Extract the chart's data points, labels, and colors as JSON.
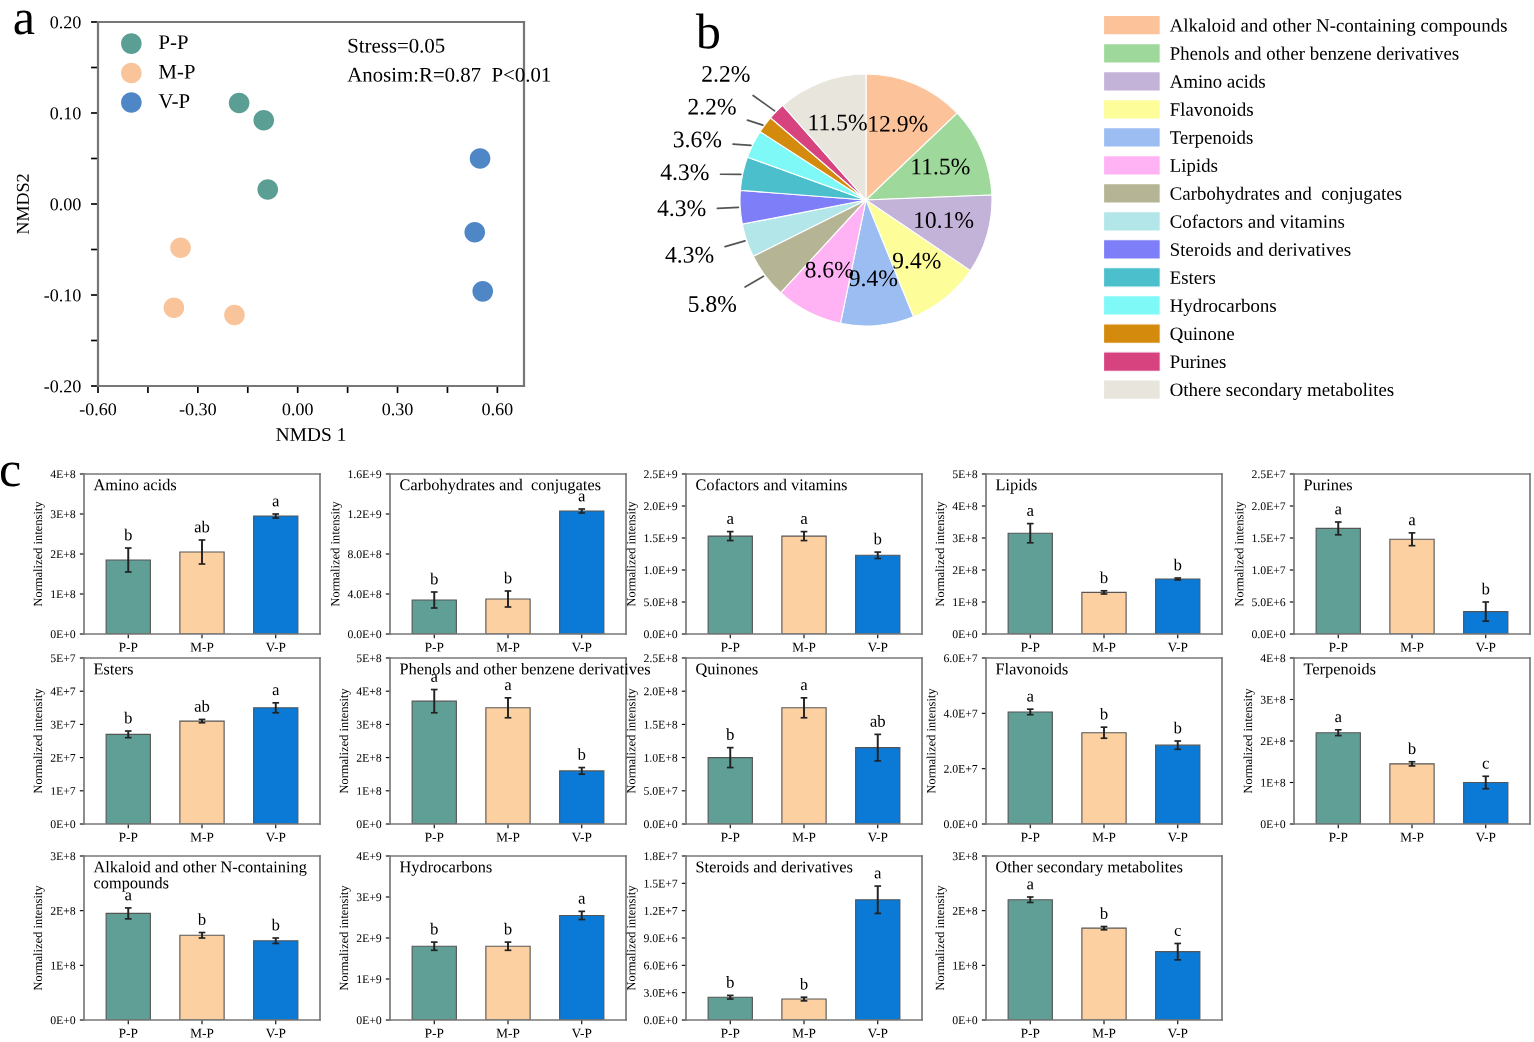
{
  "chart_data": [
    {
      "type": "scatter",
      "xlabel": "NMDS 1",
      "ylabel": "NMDS2",
      "annotations": [
        "a",
        "Stress=0.05",
        "Anosim:R=0.87  P<0.01"
      ],
      "marker": "circle",
      "legend": "top left",
      "grid": false,
      "xlim": [
        -0.6,
        0.68
      ],
      "ylim": [
        -0.2,
        0.2
      ],
      "xticks": [
        {
          "value": -0.6,
          "label": "-0.60"
        },
        {
          "value": -0.45,
          "label": null
        },
        {
          "value": -0.3,
          "label": "-0.30"
        },
        {
          "value": -0.15,
          "label": null
        },
        {
          "value": 0,
          "label": "0.00"
        },
        {
          "value": 0.15,
          "label": null
        },
        {
          "value": 0.3,
          "label": "0.30"
        },
        {
          "value": 0.45,
          "label": null
        },
        {
          "value": 0.6,
          "label": "0.60"
        }
      ],
      "yticks": [
        {
          "value": -0.2,
          "label": "-0.20"
        },
        {
          "value": -0.15,
          "label": null
        },
        {
          "value": -0.1,
          "label": "-0.10"
        },
        {
          "value": -0.05,
          "label": null
        },
        {
          "value": 0,
          "label": "0.00"
        },
        {
          "value": 0.05,
          "label": null
        },
        {
          "value": 0.1,
          "label": "0.10"
        },
        {
          "value": 0.15,
          "label": null
        },
        {
          "value": 0.2,
          "label": "0.20"
        }
      ],
      "series": [
        {
          "name": "P-P",
          "color": "#5b9e94",
          "x": [
            -0.176,
            -0.102,
            -0.09
          ],
          "values": [
            0.111,
            0.092,
            0.016
          ]
        },
        {
          "name": "M-P",
          "color": "#f9c49a",
          "x": [
            -0.352,
            -0.372,
            -0.19
          ],
          "values": [
            -0.048,
            -0.114,
            -0.122
          ]
        },
        {
          "name": "V-P",
          "color": "#4f86c6",
          "x": [
            0.548,
            0.532,
            0.556
          ],
          "values": [
            0.05,
            -0.031,
            -0.096
          ]
        }
      ]
    },
    {
      "type": "pie",
      "annotations": [
        "b"
      ],
      "legend": "right",
      "categories": [
        "Alkaloid and other N-containing compounds",
        "Phenols and other benzene derivatives",
        "Amino acids",
        "Flavonoids",
        "Terpenoids",
        "Lipids",
        "Carbohydrates and  conjugates",
        "Cofactors and vitamins",
        "Steroids and derivatives",
        "Esters",
        "Hydrocarbons",
        "Quinone",
        "Purines",
        "Othere secondary metabolites"
      ],
      "values": [
        12.9,
        11.5,
        10.1,
        9.4,
        9.4,
        8.6,
        5.8,
        4.3,
        4.3,
        4.3,
        3.6,
        2.2,
        2.2,
        11.5
      ],
      "value_labels": [
        "12.9%",
        "11.5%",
        "10.1%",
        "9.4%",
        "9.4%",
        "8.6%",
        "5.8%",
        "4.3%",
        "4.3%",
        "4.3%",
        "3.6%",
        "2.2%",
        "2.2%",
        "11.5%"
      ],
      "colors": [
        "#fcc39b",
        "#9ed99b",
        "#c4b3d9",
        "#fdfd9a",
        "#9cbdf2",
        "#ffb3f5",
        "#b5b596",
        "#b3e6e9",
        "#7e7ef8",
        "#4bbfcc",
        "#7ff8f8",
        "#d48a0c",
        "#d7437f",
        "#e7e5dc"
      ]
    },
    {
      "type": "bar",
      "title": "Amino acids",
      "ylabel": "Normalized intensity",
      "annotations": [
        "c"
      ],
      "categories": [
        "P-P",
        "M-P",
        "V-P"
      ],
      "colors": [
        "#5f9f95",
        "#fdd0a2",
        "#0a7ad6"
      ],
      "values": [
        185000000.0,
        205000000.0,
        295000000.0
      ],
      "errors": [
        30000000.0,
        30000000.0,
        5000000.0
      ],
      "value_labels": [
        "b",
        "ab",
        "a"
      ],
      "ylim": [
        0,
        400000000.0
      ],
      "yticks": [
        {
          "value": 0,
          "label": "0E+0"
        },
        {
          "value": 100000000.0,
          "label": "1E+8"
        },
        {
          "value": 200000000.0,
          "label": "2E+8"
        },
        {
          "value": 300000000.0,
          "label": "3E+8"
        },
        {
          "value": 400000000.0,
          "label": "4E+8"
        }
      ]
    },
    {
      "type": "bar",
      "title": "Carbohydrates and  conjugates",
      "ylabel": "Normalized intensity",
      "categories": [
        "P-P",
        "M-P",
        "V-P"
      ],
      "colors": [
        "#5f9f95",
        "#fdd0a2",
        "#0a7ad6"
      ],
      "values": [
        340000000.0,
        350000000.0,
        1230000000.0
      ],
      "errors": [
        80000000.0,
        80000000.0,
        20000000.0
      ],
      "value_labels": [
        "b",
        "b",
        "a"
      ],
      "ylim": [
        0,
        1600000000.0
      ],
      "yticks": [
        {
          "value": 0,
          "label": "0.0E+0"
        },
        {
          "value": 400000000.0,
          "label": "4.0E+8"
        },
        {
          "value": 800000000.0,
          "label": "8.0E+8"
        },
        {
          "value": 1200000000.0,
          "label": "1.2E+9"
        },
        {
          "value": 1600000000.0,
          "label": "1.6E+9"
        }
      ]
    },
    {
      "type": "bar",
      "title": "Cofactors and vitamins",
      "ylabel": "Normalized intensity",
      "categories": [
        "P-P",
        "M-P",
        "V-P"
      ],
      "colors": [
        "#5f9f95",
        "#fdd0a2",
        "#0a7ad6"
      ],
      "values": [
        1530000000.0,
        1530000000.0,
        1230000000.0
      ],
      "errors": [
        70000000.0,
        70000000.0,
        50000000.0
      ],
      "value_labels": [
        "a",
        "a",
        "b"
      ],
      "ylim": [
        0,
        2500000000.0
      ],
      "yticks": [
        {
          "value": 0,
          "label": "0.0E+0"
        },
        {
          "value": 500000000.0,
          "label": "5.0E+8"
        },
        {
          "value": 1000000000.0,
          "label": "1.0E+9"
        },
        {
          "value": 1500000000.0,
          "label": "1.5E+9"
        },
        {
          "value": 2000000000.0,
          "label": "2.0E+9"
        },
        {
          "value": 2500000000.0,
          "label": "2.5E+9"
        }
      ]
    },
    {
      "type": "bar",
      "title": "Lipids",
      "ylabel": "Normalized intensity",
      "categories": [
        "P-P",
        "M-P",
        "V-P"
      ],
      "colors": [
        "#5f9f95",
        "#fdd0a2",
        "#0a7ad6"
      ],
      "values": [
        315000000.0,
        130000000.0,
        172000000.0
      ],
      "errors": [
        30000000.0,
        5000000.0,
        3000000.0
      ],
      "value_labels": [
        "a",
        "b",
        "b"
      ],
      "ylim": [
        0,
        500000000.0
      ],
      "yticks": [
        {
          "value": 0,
          "label": "0E+0"
        },
        {
          "value": 100000000.0,
          "label": "1E+8"
        },
        {
          "value": 200000000.0,
          "label": "2E+8"
        },
        {
          "value": 300000000.0,
          "label": "3E+8"
        },
        {
          "value": 400000000.0,
          "label": "4E+8"
        },
        {
          "value": 500000000.0,
          "label": "5E+8"
        }
      ]
    },
    {
      "type": "bar",
      "title": "Purines",
      "ylabel": "Normalized intensity",
      "categories": [
        "P-P",
        "M-P",
        "V-P"
      ],
      "colors": [
        "#5f9f95",
        "#fdd0a2",
        "#0a7ad6"
      ],
      "values": [
        16500000.0,
        14800000.0,
        3500000.0
      ],
      "errors": [
        1000000.0,
        1000000.0,
        1500000.0
      ],
      "value_labels": [
        "a",
        "a",
        "b"
      ],
      "ylim": [
        0,
        25000000.0
      ],
      "yticks": [
        {
          "value": 0,
          "label": "0.0E+0"
        },
        {
          "value": 5000000.0,
          "label": "5.0E+6"
        },
        {
          "value": 10000000.0,
          "label": "1.0E+7"
        },
        {
          "value": 15000000.0,
          "label": "1.5E+7"
        },
        {
          "value": 20000000.0,
          "label": "2.0E+7"
        },
        {
          "value": 25000000.0,
          "label": "2.5E+7"
        }
      ]
    },
    {
      "type": "bar",
      "title": "Esters",
      "ylabel": "Normalized intensity",
      "categories": [
        "P-P",
        "M-P",
        "V-P"
      ],
      "colors": [
        "#5f9f95",
        "#fdd0a2",
        "#0a7ad6"
      ],
      "values": [
        27000000.0,
        31000000.0,
        35000000.0
      ],
      "errors": [
        1000000.0,
        500000.0,
        1500000.0
      ],
      "value_labels": [
        "b",
        "ab",
        "a"
      ],
      "ylim": [
        0,
        50000000.0
      ],
      "yticks": [
        {
          "value": 0,
          "label": "0E+0"
        },
        {
          "value": 10000000.0,
          "label": "1E+7"
        },
        {
          "value": 20000000.0,
          "label": "2E+7"
        },
        {
          "value": 30000000.0,
          "label": "3E+7"
        },
        {
          "value": 40000000.0,
          "label": "4E+7"
        },
        {
          "value": 50000000.0,
          "label": "5E+7"
        }
      ]
    },
    {
      "type": "bar",
      "title": "Phenols and other benzene derivatives",
      "ylabel": "Normalized intensity",
      "categories": [
        "P-P",
        "M-P",
        "V-P"
      ],
      "colors": [
        "#5f9f95",
        "#fdd0a2",
        "#0a7ad6"
      ],
      "values": [
        370000000.0,
        350000000.0,
        160000000.0
      ],
      "errors": [
        35000000.0,
        30000000.0,
        10000000.0
      ],
      "value_labels": [
        "a",
        "a",
        "b"
      ],
      "ylim": [
        0,
        500000000.0
      ],
      "yticks": [
        {
          "value": 0,
          "label": "0E+0"
        },
        {
          "value": 100000000.0,
          "label": "1E+8"
        },
        {
          "value": 200000000.0,
          "label": "2E+8"
        },
        {
          "value": 300000000.0,
          "label": "3E+8"
        },
        {
          "value": 400000000.0,
          "label": "4E+8"
        },
        {
          "value": 500000000.0,
          "label": "5E+8"
        }
      ]
    },
    {
      "type": "bar",
      "title": "Quinones",
      "ylabel": "Normalized intensity",
      "categories": [
        "P-P",
        "M-P",
        "V-P"
      ],
      "colors": [
        "#5f9f95",
        "#fdd0a2",
        "#0a7ad6"
      ],
      "values": [
        100000000.0,
        175000000.0,
        115000000.0
      ],
      "errors": [
        15000000.0,
        15000000.0,
        20000000.0
      ],
      "value_labels": [
        "b",
        "a",
        "ab"
      ],
      "ylim": [
        0,
        250000000.0
      ],
      "yticks": [
        {
          "value": 0,
          "label": "0.0E+0"
        },
        {
          "value": 50000000.0,
          "label": "5.0E+7"
        },
        {
          "value": 100000000.0,
          "label": "1.0E+8"
        },
        {
          "value": 150000000.0,
          "label": "1.5E+8"
        },
        {
          "value": 200000000.0,
          "label": "2.0E+8"
        },
        {
          "value": 250000000.0,
          "label": "2.5E+8"
        }
      ]
    },
    {
      "type": "bar",
      "title": "Flavonoids",
      "ylabel": "Normalized intensity",
      "categories": [
        "P-P",
        "M-P",
        "V-P"
      ],
      "colors": [
        "#5f9f95",
        "#fdd0a2",
        "#0a7ad6"
      ],
      "values": [
        40500000.0,
        33000000.0,
        28500000.0
      ],
      "errors": [
        1000000.0,
        2000000.0,
        1500000.0
      ],
      "value_labels": [
        "a",
        "b",
        "b"
      ],
      "ylim": [
        0,
        60000000.0
      ],
      "yticks": [
        {
          "value": 0,
          "label": "0.0E+0"
        },
        {
          "value": 20000000.0,
          "label": "2.0E+7"
        },
        {
          "value": 40000000.0,
          "label": "4.0E+7"
        },
        {
          "value": 60000000.0,
          "label": "6.0E+7"
        }
      ]
    },
    {
      "type": "bar",
      "title": "Terpenoids",
      "ylabel": "Normalized intensity",
      "categories": [
        "P-P",
        "M-P",
        "V-P"
      ],
      "colors": [
        "#5f9f95",
        "#fdd0a2",
        "#0a7ad6"
      ],
      "values": [
        220000000.0,
        145000000.0,
        100000000.0
      ],
      "errors": [
        7000000.0,
        5000000.0,
        15000000.0
      ],
      "value_labels": [
        "a",
        "b",
        "c"
      ],
      "ylim": [
        0,
        400000000.0
      ],
      "yticks": [
        {
          "value": 0,
          "label": "0E+0"
        },
        {
          "value": 100000000.0,
          "label": "1E+8"
        },
        {
          "value": 200000000.0,
          "label": "2E+8"
        },
        {
          "value": 300000000.0,
          "label": "3E+8"
        },
        {
          "value": 400000000.0,
          "label": "4E+8"
        }
      ]
    },
    {
      "type": "bar",
      "title": "Alkaloid and other N-containing\ncompounds",
      "ylabel": "Normalized intensity",
      "categories": [
        "P-P",
        "M-P",
        "V-P"
      ],
      "colors": [
        "#5f9f95",
        "#fdd0a2",
        "#0a7ad6"
      ],
      "values": [
        195000000.0,
        155000000.0,
        145000000.0
      ],
      "errors": [
        10000000.0,
        5000000.0,
        5000000.0
      ],
      "value_labels": [
        "a",
        "b",
        "b"
      ],
      "ylim": [
        0,
        300000000.0
      ],
      "yticks": [
        {
          "value": 0,
          "label": "0E+0"
        },
        {
          "value": 100000000.0,
          "label": "1E+8"
        },
        {
          "value": 200000000.0,
          "label": "2E+8"
        },
        {
          "value": 300000000.0,
          "label": "3E+8"
        }
      ]
    },
    {
      "type": "bar",
      "title": "Hydrocarbons",
      "ylabel": "Normalized intensity",
      "categories": [
        "P-P",
        "M-P",
        "V-P"
      ],
      "colors": [
        "#5f9f95",
        "#fdd0a2",
        "#0a7ad6"
      ],
      "values": [
        1800000000.0,
        1800000000.0,
        2550000000.0
      ],
      "errors": [
        100000000.0,
        100000000.0,
        100000000.0
      ],
      "value_labels": [
        "b",
        "b",
        "a"
      ],
      "ylim": [
        0,
        4000000000.0
      ],
      "yticks": [
        {
          "value": 0,
          "label": "0E+0"
        },
        {
          "value": 1000000000.0,
          "label": "1E+9"
        },
        {
          "value": 2000000000.0,
          "label": "2E+9"
        },
        {
          "value": 3000000000.0,
          "label": "3E+9"
        },
        {
          "value": 4000000000.0,
          "label": "4E+9"
        }
      ]
    },
    {
      "type": "bar",
      "title": "Steroids and derivatives",
      "ylabel": "Normalized intensity",
      "categories": [
        "P-P",
        "M-P",
        "V-P"
      ],
      "colors": [
        "#5f9f95",
        "#fdd0a2",
        "#0a7ad6"
      ],
      "values": [
        2500000.0,
        2300000.0,
        13200000.0
      ],
      "errors": [
        200000.0,
        200000.0,
        1500000.0
      ],
      "value_labels": [
        "b",
        "b",
        "a"
      ],
      "ylim": [
        0,
        18000000.0
      ],
      "yticks": [
        {
          "value": 0,
          "label": "0.0E+0"
        },
        {
          "value": 3000000.0,
          "label": "3.0E+6"
        },
        {
          "value": 6000000.0,
          "label": "6.0E+6"
        },
        {
          "value": 9000000.0,
          "label": "9.0E+6"
        },
        {
          "value": 12000000.0,
          "label": "1.2E+7"
        },
        {
          "value": 15000000.0,
          "label": "1.5E+7"
        },
        {
          "value": 18000000.0,
          "label": "1.8E+7"
        }
      ]
    },
    {
      "type": "bar",
      "title": "Other secondary metabolites",
      "ylabel": "Normalized intensity",
      "categories": [
        "P-P",
        "M-P",
        "V-P"
      ],
      "colors": [
        "#5f9f95",
        "#fdd0a2",
        "#0a7ad6"
      ],
      "values": [
        220000000.0,
        168000000.0,
        125000000.0
      ],
      "errors": [
        5000000.0,
        3000000.0,
        15000000.0
      ],
      "value_labels": [
        "a",
        "b",
        "c"
      ],
      "ylim": [
        0,
        300000000.0
      ],
      "yticks": [
        {
          "value": 0,
          "label": "0E+0"
        },
        {
          "value": 100000000.0,
          "label": "1E+8"
        },
        {
          "value": 200000000.0,
          "label": "2E+8"
        },
        {
          "value": 300000000.0,
          "label": "3E+8"
        }
      ]
    }
  ]
}
